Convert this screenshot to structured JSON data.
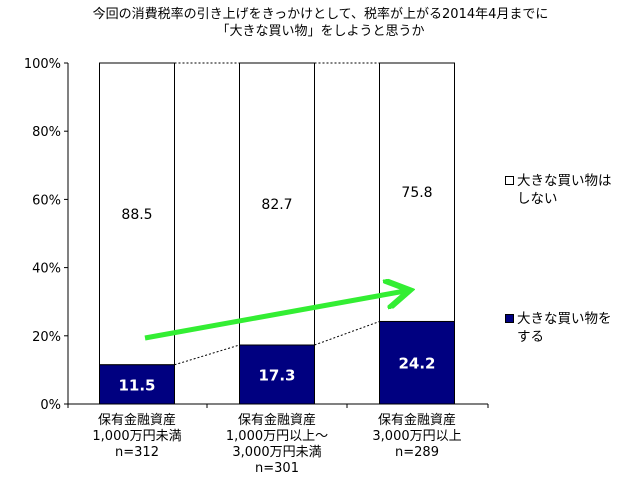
{
  "chart_data": {
    "type": "bar",
    "stacked": true,
    "title_lines": [
      "今回の消費税率の引き上げをきっかけとして、税率が上がる2014年4月までに",
      "「大きな買い物」をしようと思うか"
    ],
    "categories": [
      [
        "保有金融資産",
        "1,000万円未満",
        "n=312"
      ],
      [
        "保有金融資産",
        "1,000万円以上～",
        "3,000万円未満",
        "n=301"
      ],
      [
        "保有金融資産",
        "3,000万円以上",
        "n=289"
      ]
    ],
    "series": [
      {
        "name": "大きな買い物をする",
        "values": [
          11.5,
          17.3,
          24.2
        ],
        "color": "#000080",
        "label_color": "#ffffff"
      },
      {
        "name": "大きな買い物はしない",
        "values": [
          88.5,
          82.7,
          75.8
        ],
        "color": "#ffffff",
        "label_color": "#000000"
      }
    ],
    "ylim": [
      0,
      100
    ],
    "yticks": [
      "0%",
      "20%",
      "40%",
      "60%",
      "80%",
      "100%"
    ],
    "grid": false,
    "legend_position": "right",
    "connector_lines": "dotted",
    "trend_arrow_color": "#33ee33"
  },
  "legend": {
    "items": [
      {
        "label": "大きな買い物は\nしない",
        "color": "#ffffff"
      },
      {
        "label": "大きな買い物を\nする",
        "color": "#000080"
      }
    ]
  }
}
